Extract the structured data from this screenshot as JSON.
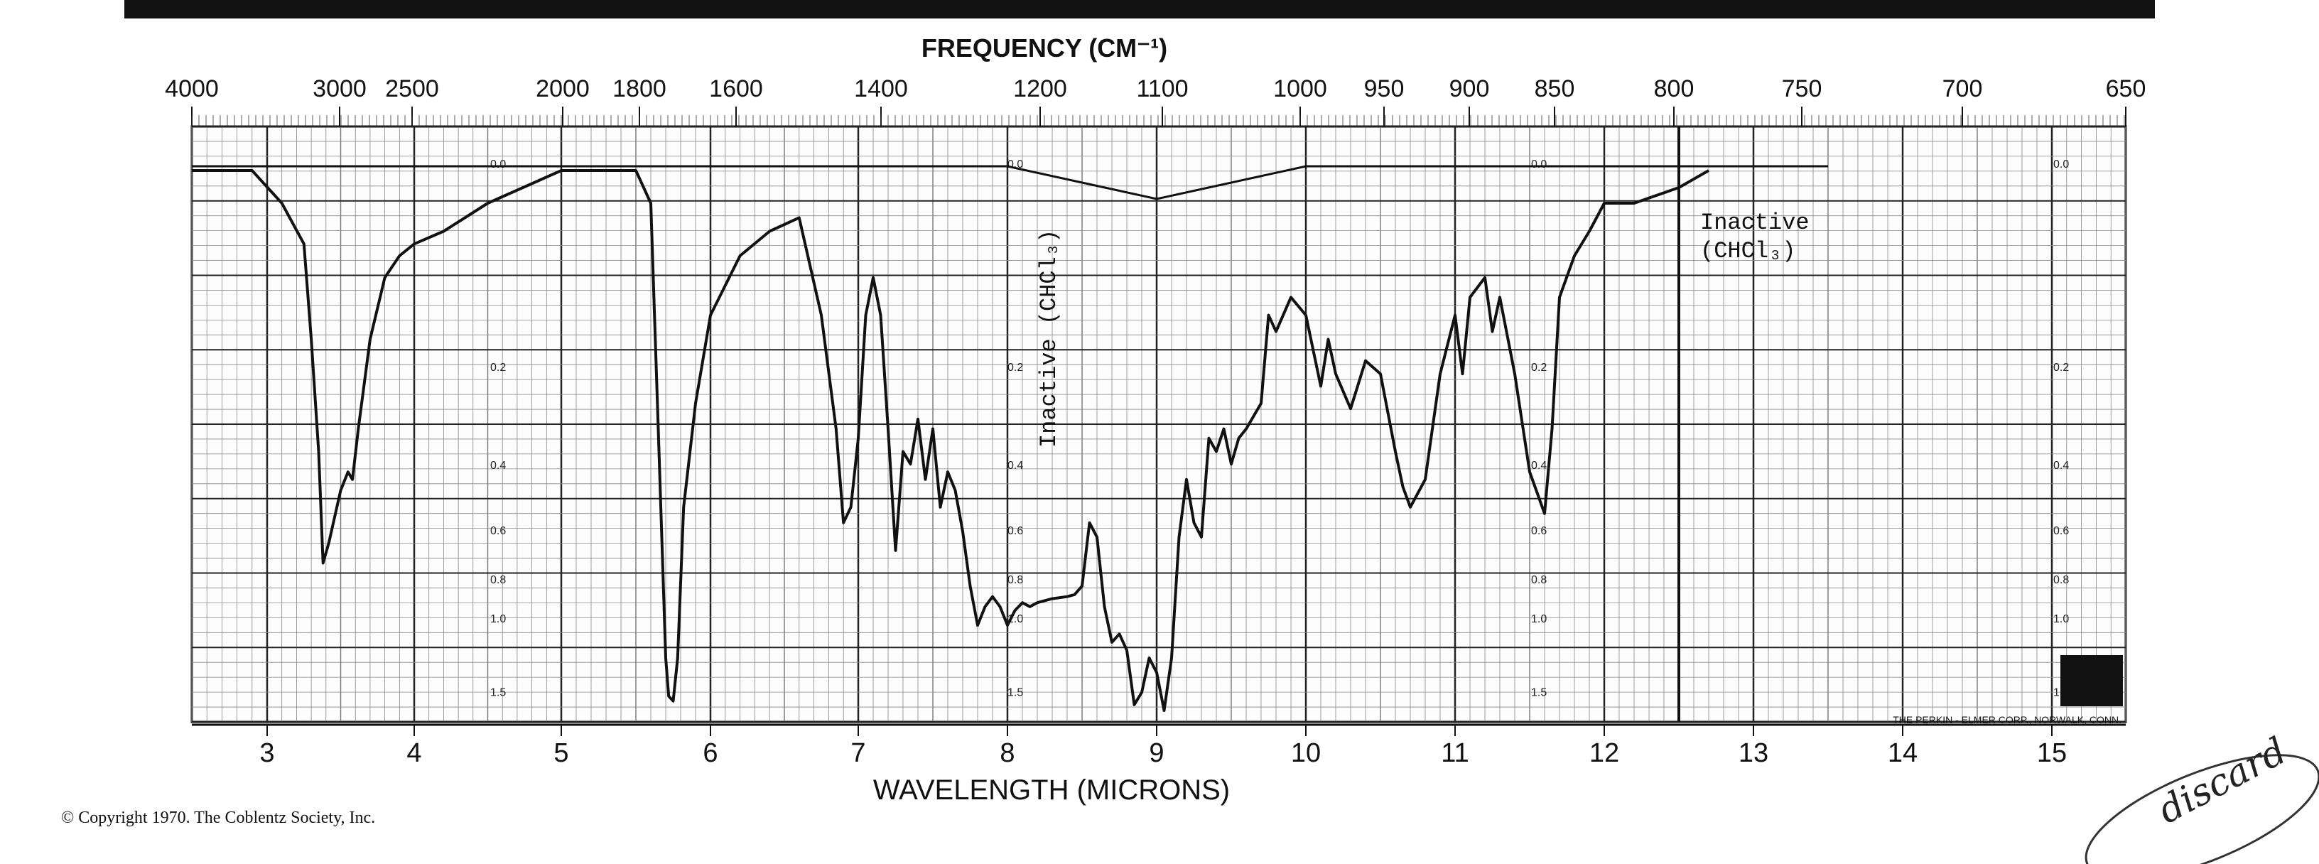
{
  "chart_data": {
    "type": "line",
    "title": "",
    "top_axis": {
      "label": "FREQUENCY (CM⁻¹)",
      "ticks": [
        4000,
        3000,
        2500,
        2000,
        1800,
        1600,
        1400,
        1200,
        1100,
        1000,
        950,
        900,
        850,
        800,
        750,
        700,
        650
      ]
    },
    "bottom_axis": {
      "label": "WAVELENGTH (MICRONS)",
      "ticks": [
        3,
        4,
        5,
        6,
        7,
        8,
        9,
        10,
        11,
        12,
        13,
        14,
        15
      ],
      "xlim": [
        2.5,
        15.5
      ]
    },
    "y_axis": {
      "label": "",
      "scale": "absorbance",
      "ylim": [
        0.0,
        1.5
      ],
      "tick_labels": [
        "0.0",
        "0.2",
        "0.4",
        "0.6",
        "0.8",
        "1.0",
        "1.5"
      ]
    },
    "grid": true,
    "series": [
      {
        "name": "",
        "x": [
          2.5,
          2.9,
          3.1,
          3.25,
          3.3,
          3.35,
          3.38,
          3.42,
          3.45,
          3.5,
          3.55,
          3.58,
          3.62,
          3.7,
          3.8,
          3.9,
          4.0,
          4.2,
          4.5,
          5.0,
          5.3,
          5.5,
          5.6,
          5.65,
          5.7,
          5.72,
          5.75,
          5.78,
          5.82,
          5.9,
          6.0,
          6.2,
          6.4,
          6.6,
          6.75,
          6.85,
          6.9,
          6.95,
          7.0,
          7.05,
          7.1,
          7.15,
          7.2,
          7.25,
          7.3,
          7.35,
          7.4,
          7.45,
          7.5,
          7.55,
          7.6,
          7.65,
          7.7,
          7.75,
          7.8,
          7.85,
          7.9,
          7.95,
          8.0,
          8.05,
          8.1,
          8.15,
          8.2,
          8.3,
          8.4,
          8.45,
          8.5,
          8.55,
          8.6,
          8.65,
          8.7,
          8.75,
          8.8,
          8.85,
          8.9,
          8.95,
          9.0,
          9.05,
          9.1,
          9.15,
          9.2,
          9.25,
          9.3,
          9.35,
          9.4,
          9.45,
          9.5,
          9.55,
          9.6,
          9.7,
          9.75,
          9.8,
          9.9,
          10.0,
          10.1,
          10.15,
          10.2,
          10.3,
          10.4,
          10.5,
          10.6,
          10.65,
          10.7,
          10.8,
          10.9,
          11.0,
          11.05,
          11.1,
          11.2,
          11.25,
          11.3,
          11.4,
          11.5,
          11.6,
          11.65,
          11.7,
          11.8,
          11.9,
          12.0,
          12.2,
          12.5,
          12.7
        ],
        "y": [
          0.0,
          0.0,
          0.02,
          0.05,
          0.15,
          0.35,
          0.7,
          0.62,
          0.55,
          0.45,
          0.4,
          0.42,
          0.3,
          0.15,
          0.08,
          0.06,
          0.05,
          0.04,
          0.02,
          0.0,
          0.0,
          0.0,
          0.02,
          0.3,
          1.2,
          1.48,
          1.52,
          1.2,
          0.5,
          0.25,
          0.12,
          0.06,
          0.04,
          0.03,
          0.12,
          0.3,
          0.55,
          0.5,
          0.32,
          0.12,
          0.08,
          0.12,
          0.3,
          0.65,
          0.35,
          0.38,
          0.28,
          0.42,
          0.3,
          0.5,
          0.4,
          0.45,
          0.58,
          0.8,
          1.0,
          0.9,
          0.85,
          0.9,
          1.0,
          0.92,
          0.88,
          0.9,
          0.88,
          0.86,
          0.85,
          0.84,
          0.8,
          0.55,
          0.6,
          0.9,
          1.1,
          1.05,
          1.15,
          1.55,
          1.45,
          1.2,
          1.3,
          1.6,
          1.2,
          0.6,
          0.42,
          0.55,
          0.6,
          0.32,
          0.35,
          0.3,
          0.38,
          0.32,
          0.3,
          0.25,
          0.12,
          0.14,
          0.1,
          0.12,
          0.22,
          0.15,
          0.2,
          0.26,
          0.18,
          0.2,
          0.35,
          0.44,
          0.5,
          0.42,
          0.2,
          0.12,
          0.2,
          0.1,
          0.08,
          0.14,
          0.1,
          0.2,
          0.4,
          0.52,
          0.3,
          0.1,
          0.06,
          0.04,
          0.02,
          0.02,
          0.01,
          0.0
        ]
      }
    ],
    "solvent_baseline": {
      "x": [
        2.5,
        4.0,
        6.0,
        8.0,
        9.0,
        10.0,
        11.0,
        12.0,
        12.8,
        13.5
      ],
      "y": [
        0.0,
        0.0,
        0.0,
        0.0,
        0.02,
        0.0,
        0.0,
        0.0,
        0.0,
        0.0
      ]
    },
    "annotations": [
      {
        "text": "Inactive (CHCl₃)",
        "orientation": "vertical",
        "at_x": 8.2
      },
      {
        "text": "Inactive\n(CHCl₃)",
        "orientation": "horizontal",
        "at_x": 12.7
      }
    ],
    "manufacturer_label": "THE PERKIN - ELMER CORP., NORWALK, CONN.",
    "handwritten": "discard"
  },
  "copyright": "© Copyright 1970.  The Coblentz Society, Inc."
}
